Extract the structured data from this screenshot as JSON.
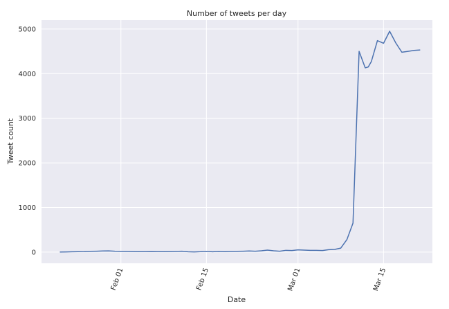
{
  "chart_data": {
    "type": "line",
    "title": "Number of tweets per day",
    "xlabel": "Date",
    "ylabel": "Tweet count",
    "x_ticks": [
      "Feb 01",
      "Feb 15",
      "Mar 01",
      "Mar 15"
    ],
    "y_ticks": [
      "0",
      "1000",
      "2000",
      "3000",
      "4000",
      "5000"
    ],
    "ylim": [
      -250,
      5200
    ],
    "xlim": [
      "2020-01-19",
      "2020-03-23"
    ],
    "grid": true,
    "colors": {
      "background": "#eaeaf2",
      "grid": "#ffffff",
      "line": "#4c72b0"
    },
    "series": [
      {
        "x": [
          "2020-01-22",
          "2020-01-23",
          "2020-01-24",
          "2020-01-25",
          "2020-01-26",
          "2020-01-27",
          "2020-01-28",
          "2020-01-29",
          "2020-01-30",
          "2020-01-31",
          "2020-02-01",
          "2020-02-02",
          "2020-02-03",
          "2020-02-04",
          "2020-02-05",
          "2020-02-06",
          "2020-02-07",
          "2020-02-08",
          "2020-02-09",
          "2020-02-10",
          "2020-02-11",
          "2020-02-12",
          "2020-02-13",
          "2020-02-14",
          "2020-02-15",
          "2020-02-16",
          "2020-02-17",
          "2020-02-18",
          "2020-02-19",
          "2020-02-20",
          "2020-02-21",
          "2020-02-22",
          "2020-02-23",
          "2020-02-24",
          "2020-02-25",
          "2020-02-26",
          "2020-02-27",
          "2020-02-28",
          "2020-02-29",
          "2020-03-01",
          "2020-03-02",
          "2020-03-03",
          "2020-03-04",
          "2020-03-05",
          "2020-03-06",
          "2020-03-07",
          "2020-03-08",
          "2020-03-09",
          "2020-03-10",
          "2020-03-11",
          "2020-03-12",
          "2020-03-12T12:00",
          "2020-03-13",
          "2020-03-14",
          "2020-03-15",
          "2020-03-16",
          "2020-03-17",
          "2020-03-18",
          "2020-03-18T12:00",
          "2020-03-19",
          "2020-03-20",
          "2020-03-21"
        ],
        "values": [
          2,
          5,
          8,
          10,
          12,
          18,
          20,
          25,
          28,
          20,
          18,
          15,
          12,
          10,
          12,
          14,
          12,
          10,
          12,
          15,
          20,
          8,
          5,
          10,
          18,
          8,
          15,
          10,
          15,
          18,
          20,
          25,
          20,
          30,
          45,
          30,
          20,
          40,
          35,
          50,
          45,
          40,
          40,
          35,
          55,
          60,
          90,
          280,
          650,
          4500,
          4130,
          4150,
          4270,
          4740,
          4680,
          4950,
          4690,
          4480,
          4490,
          4500,
          4520,
          4530
        ]
      }
    ]
  }
}
